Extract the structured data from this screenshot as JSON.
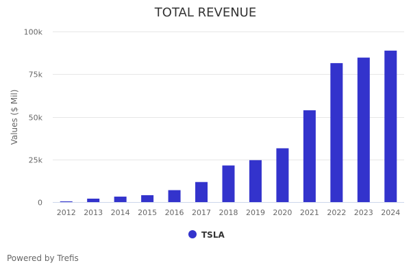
{
  "chart_data": {
    "type": "bar",
    "title": "TOTAL REVENUE",
    "xlabel": "",
    "ylabel": "Values ($ Mil)",
    "ylim": [
      0,
      100000
    ],
    "yticks": [
      0,
      25000,
      50000,
      75000,
      100000
    ],
    "ytick_labels": [
      "0",
      "25k",
      "50k",
      "75k",
      "100k"
    ],
    "grid": true,
    "legend_position": "bottom-center",
    "categories": [
      "2012",
      "2013",
      "2014",
      "2015",
      "2016",
      "2017",
      "2018",
      "2019",
      "2020",
      "2021",
      "2022",
      "2023",
      "2024"
    ],
    "series": [
      {
        "name": "TSLA",
        "color": "#3333cc",
        "values": [
          413,
          2013,
          3198,
          4046,
          7000,
          11759,
          21461,
          24578,
          31536,
          53823,
          81462,
          84700,
          88800
        ]
      }
    ]
  },
  "footer": {
    "credit": "Powered by Trefis"
  }
}
